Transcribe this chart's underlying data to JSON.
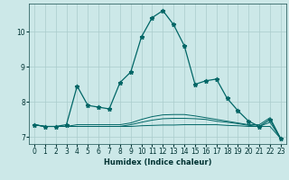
{
  "title": "",
  "xlabel": "Humidex (Indice chaleur)",
  "ylabel": "",
  "bg_color": "#cce8e8",
  "grid_color": "#aacccc",
  "line_color": "#006666",
  "xlim": [
    -0.5,
    23.5
  ],
  "ylim": [
    6.8,
    10.8
  ],
  "yticks": [
    7,
    8,
    9,
    10
  ],
  "xticks": [
    0,
    1,
    2,
    3,
    4,
    5,
    6,
    7,
    8,
    9,
    10,
    11,
    12,
    13,
    14,
    15,
    16,
    17,
    18,
    19,
    20,
    21,
    22,
    23
  ],
  "series": [
    [
      7.35,
      7.3,
      7.3,
      7.3,
      7.3,
      7.3,
      7.3,
      7.3,
      7.3,
      7.3,
      7.32,
      7.33,
      7.34,
      7.34,
      7.35,
      7.35,
      7.35,
      7.35,
      7.33,
      7.32,
      7.3,
      7.3,
      7.3,
      6.95
    ],
    [
      7.35,
      7.3,
      7.3,
      7.3,
      7.3,
      7.3,
      7.3,
      7.3,
      7.3,
      7.35,
      7.42,
      7.48,
      7.52,
      7.53,
      7.53,
      7.52,
      7.5,
      7.45,
      7.42,
      7.38,
      7.33,
      7.3,
      7.42,
      6.95
    ],
    [
      7.35,
      7.3,
      7.3,
      7.35,
      8.45,
      7.9,
      7.85,
      7.8,
      8.55,
      8.85,
      9.85,
      10.4,
      10.6,
      10.2,
      9.6,
      8.5,
      8.6,
      8.65,
      8.1,
      7.75,
      7.45,
      7.3,
      7.5,
      6.95
    ],
    [
      7.35,
      7.3,
      7.3,
      7.3,
      7.35,
      7.35,
      7.35,
      7.35,
      7.35,
      7.4,
      7.5,
      7.58,
      7.63,
      7.64,
      7.64,
      7.6,
      7.55,
      7.5,
      7.45,
      7.4,
      7.35,
      7.35,
      7.55,
      6.95
    ]
  ]
}
